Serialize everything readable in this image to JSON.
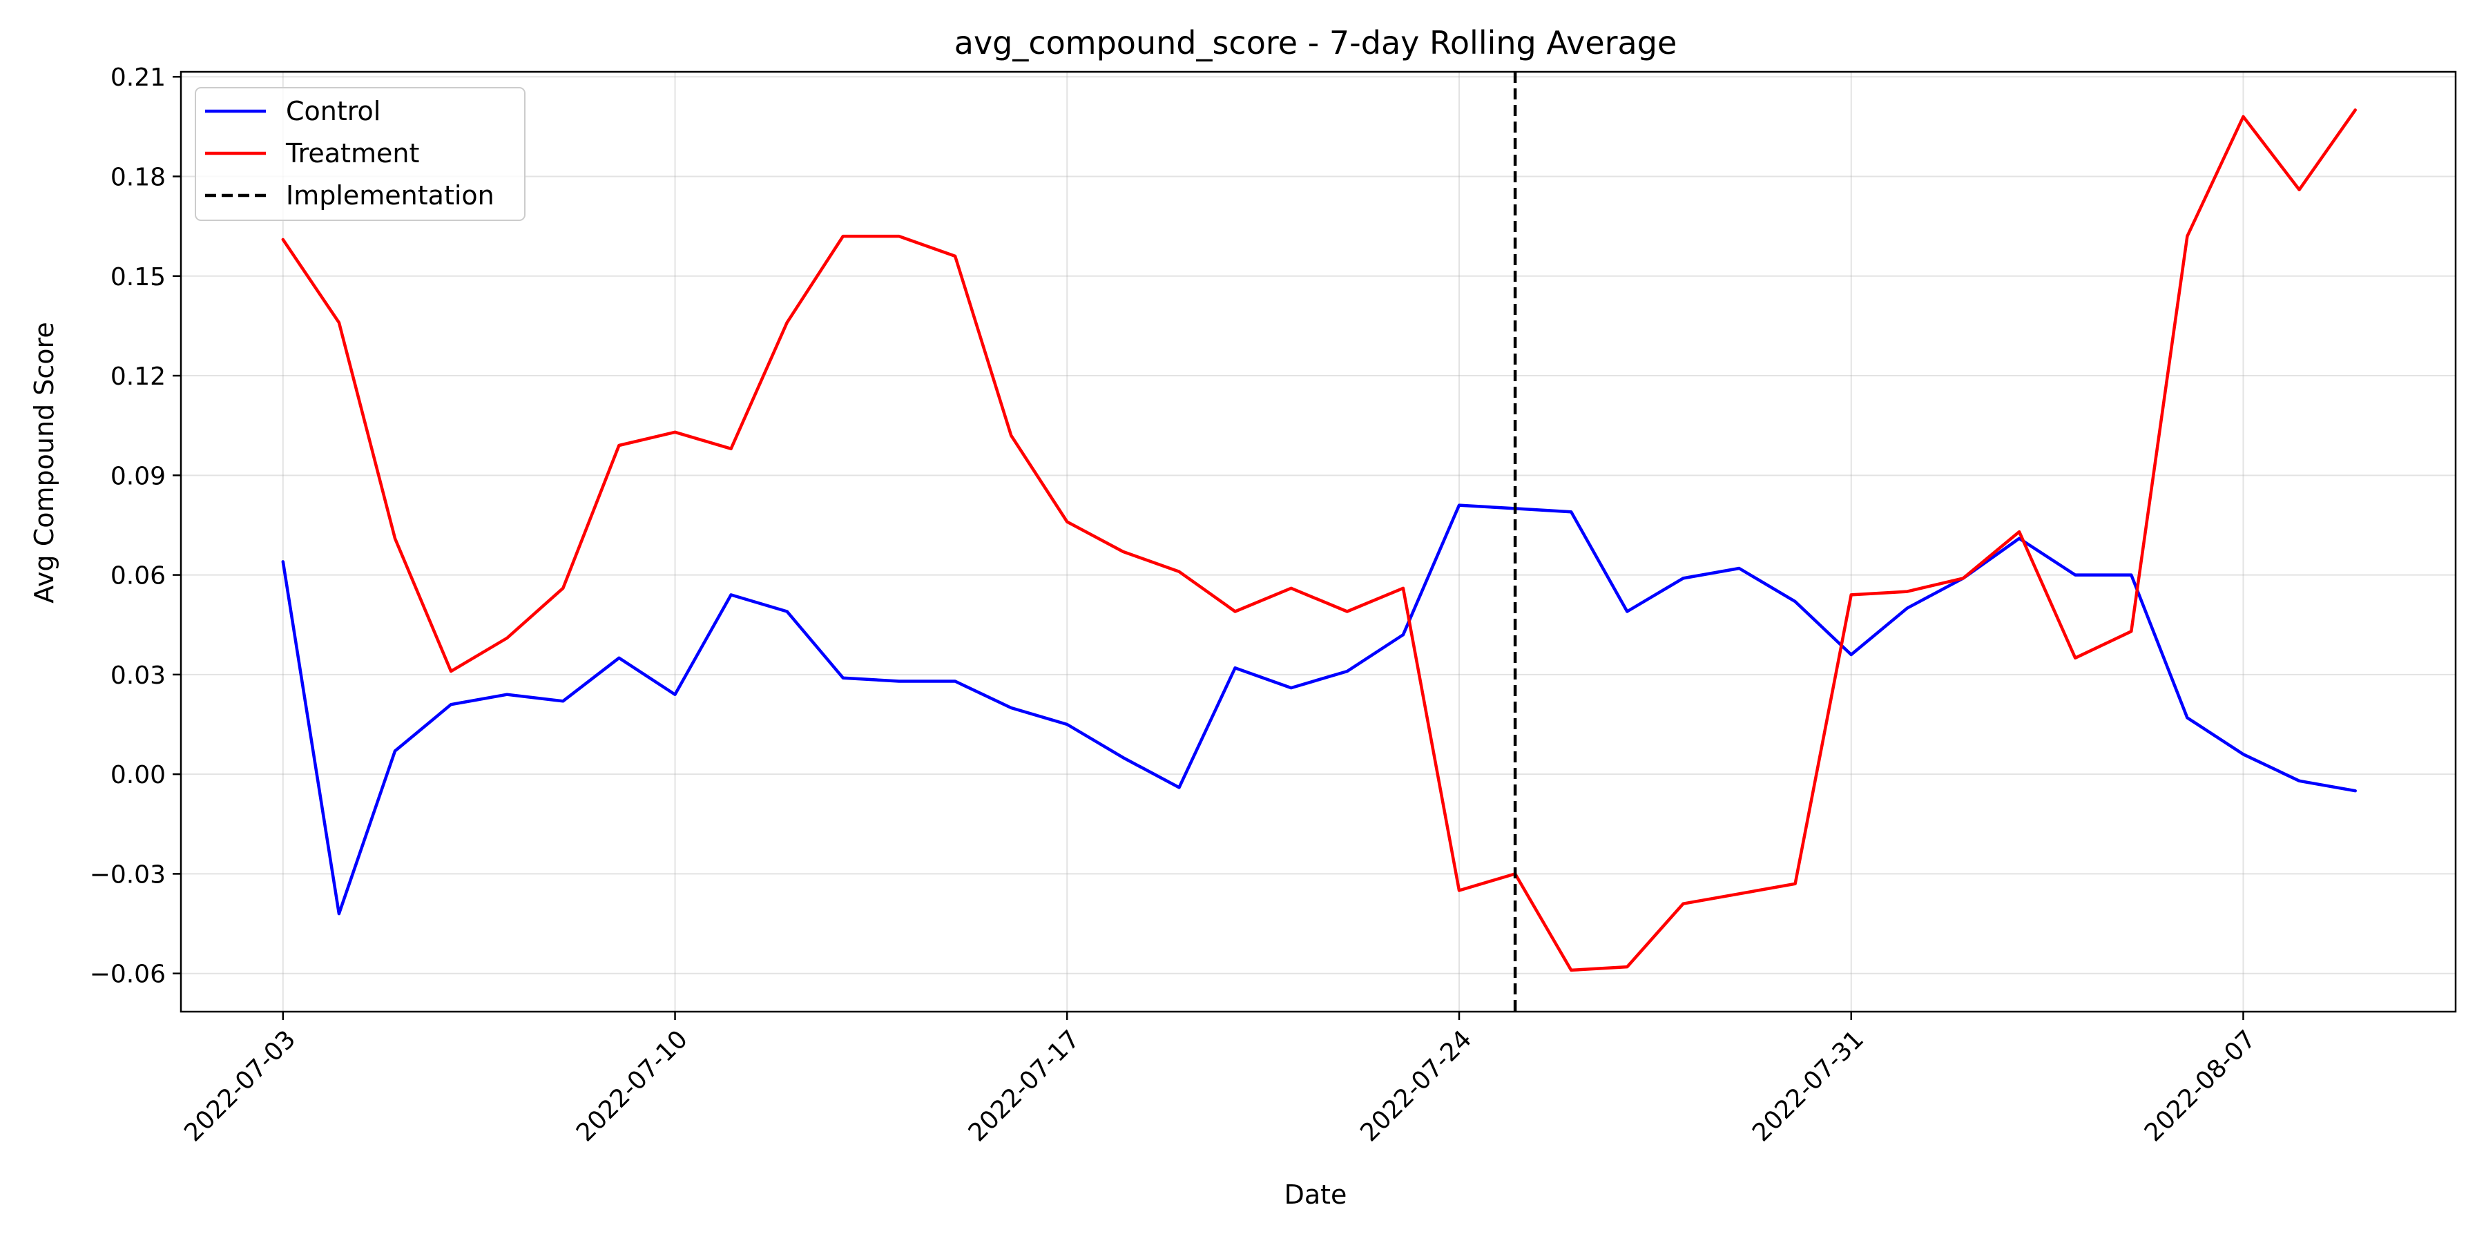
{
  "chart_data": {
    "type": "line",
    "title": "avg_compound_score - 7-day Rolling Average",
    "xlabel": "Date",
    "ylabel": "Avg Compound Score",
    "x": [
      "2022-07-03",
      "2022-07-04",
      "2022-07-05",
      "2022-07-06",
      "2022-07-07",
      "2022-07-08",
      "2022-07-09",
      "2022-07-10",
      "2022-07-11",
      "2022-07-12",
      "2022-07-13",
      "2022-07-14",
      "2022-07-15",
      "2022-07-16",
      "2022-07-17",
      "2022-07-18",
      "2022-07-19",
      "2022-07-20",
      "2022-07-21",
      "2022-07-22",
      "2022-07-23",
      "2022-07-24",
      "2022-07-25",
      "2022-07-26",
      "2022-07-27",
      "2022-07-28",
      "2022-07-29",
      "2022-07-30",
      "2022-07-31",
      "2022-08-01",
      "2022-08-02",
      "2022-08-03",
      "2022-08-04",
      "2022-08-05",
      "2022-08-06",
      "2022-08-07",
      "2022-08-08",
      "2022-08-09"
    ],
    "xticks": [
      "2022-07-03",
      "2022-07-10",
      "2022-07-17",
      "2022-07-24",
      "2022-07-31",
      "2022-08-07"
    ],
    "xlim": [
      "2022-07-01T04:16",
      "2022-08-10T19:00"
    ],
    "yticks": [
      -0.06,
      -0.03,
      0.0,
      0.03,
      0.06,
      0.09,
      0.12,
      0.15,
      0.18,
      0.21
    ],
    "ytick_labels": [
      "−0.06",
      "−0.03",
      "0.00",
      "0.03",
      "0.06",
      "0.09",
      "0.12",
      "0.15",
      "0.18",
      "0.21"
    ],
    "ylim": [
      -0.0715,
      0.2115
    ],
    "grid": true,
    "legend_position": "top-left",
    "series": [
      {
        "name": "Control",
        "color": "#0000ff",
        "line_style": "solid",
        "values": [
          0.064,
          -0.042,
          0.007,
          0.021,
          0.024,
          0.022,
          0.035,
          0.024,
          0.054,
          0.049,
          0.029,
          0.028,
          0.028,
          0.02,
          0.015,
          0.005,
          -0.004,
          0.032,
          0.026,
          0.031,
          0.042,
          0.081,
          0.08,
          0.079,
          0.049,
          0.059,
          0.062,
          0.052,
          0.036,
          0.05,
          0.059,
          0.071,
          0.06,
          0.06,
          0.017,
          0.006,
          -0.002,
          -0.005
        ]
      },
      {
        "name": "Treatment",
        "color": "#ff0000",
        "line_style": "solid",
        "values": [
          0.161,
          0.136,
          0.071,
          0.031,
          0.041,
          0.056,
          0.099,
          0.103,
          0.098,
          0.136,
          0.162,
          0.162,
          0.156,
          0.102,
          0.076,
          0.067,
          0.061,
          0.049,
          0.056,
          0.049,
          0.056,
          -0.035,
          -0.03,
          -0.059,
          -0.058,
          -0.039,
          -0.036,
          -0.033,
          0.054,
          0.055,
          0.059,
          0.073,
          0.035,
          0.043,
          0.162,
          0.198,
          0.176,
          0.2
        ]
      }
    ],
    "vlines": [
      {
        "name": "Implementation",
        "x": "2022-07-25",
        "color": "#000000",
        "line_style": "dashed"
      }
    ]
  }
}
